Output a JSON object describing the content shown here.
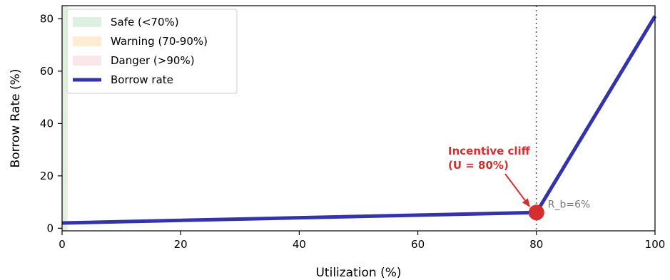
{
  "chart_data": {
    "type": "line",
    "xlabel": "Utilization (%)",
    "ylabel": "Borrow Rate (%)",
    "xlim": [
      0,
      100
    ],
    "ylim": [
      -1,
      85
    ],
    "x_ticks": [
      0,
      20,
      40,
      60,
      80,
      100
    ],
    "y_ticks": [
      0,
      20,
      40,
      60,
      80
    ],
    "grid": false,
    "legend_position": "top-left",
    "zones": [
      {
        "name": "Safe (<70%)",
        "x_range": [
          0,
          0.7
        ],
        "color": "#c8e6c9"
      },
      {
        "name": "Warning (70-90%)",
        "x_range": [
          0.7,
          0.9
        ],
        "color": "#ffe0b2"
      },
      {
        "name": "Danger (>90%)",
        "x_range": [
          0.9,
          1.0
        ],
        "color": "#f8d7da"
      }
    ],
    "series": [
      {
        "name": "Borrow rate",
        "color": "#3333aa",
        "x": [
          0,
          80,
          100
        ],
        "y": [
          2,
          6,
          81
        ]
      }
    ],
    "kink": {
      "x": 80,
      "y": 6,
      "color": "#d32f2f"
    },
    "vline_x": 80,
    "annotation_lines": [
      "Incentive cliff",
      "(U = 80%)"
    ],
    "annotation_color": "#d32f2f",
    "point_label": "R_b=6%",
    "point_label_color": "#777777"
  }
}
